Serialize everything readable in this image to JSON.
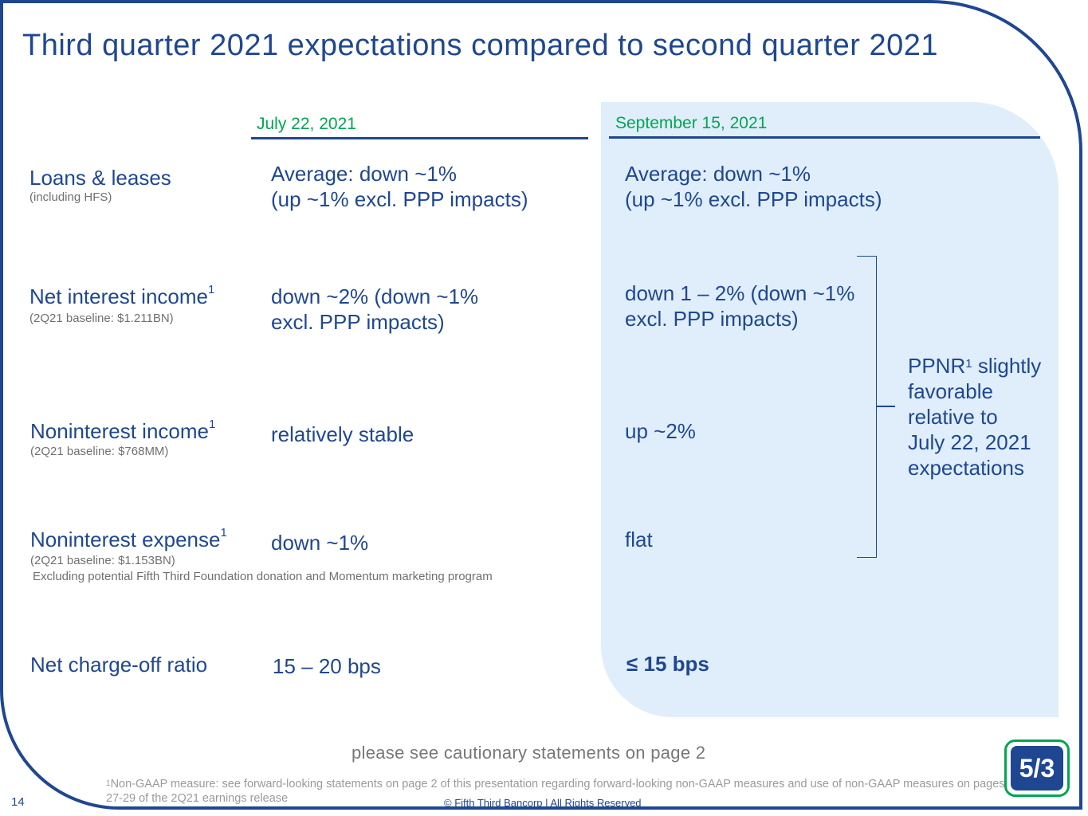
{
  "title": "Third quarter 2021 expectations compared to second quarter 2021",
  "columns": {
    "left_date": "July 22, 2021",
    "right_date": "September 15, 2021"
  },
  "rows": {
    "loans": {
      "label": "Loans & leases",
      "sub": "(including HFS)",
      "july": "Average: down ~1%\n(up ~1% excl. PPP impacts)",
      "sept": "Average: down ~1%\n(up ~1% excl. PPP impacts)"
    },
    "nii": {
      "label": "Net interest income",
      "sup": "1",
      "sub": "(2Q21 baseline: $1.211BN)",
      "july": "down ~2% (down ~1%\nexcl. PPP impacts)",
      "sept": "down 1 – 2% (down ~1%\nexcl. PPP impacts)"
    },
    "nonint_income": {
      "label": "Noninterest income",
      "sup": "1",
      "sub": "(2Q21 baseline: $768MM)",
      "july": "relatively stable",
      "sept": "up ~2%"
    },
    "nonint_expense": {
      "label": "Noninterest expense",
      "sup": "1",
      "sub": "(2Q21 baseline: $1.153BN)",
      "note": "Excluding potential Fifth Third Foundation donation and Momentum marketing program",
      "july": "down ~1%",
      "sept": "flat"
    },
    "nco": {
      "label": "Net charge-off ratio",
      "july": "15 – 20 bps",
      "sept": "≤ 15 bps"
    }
  },
  "ppnr": {
    "prefix": "PPNR",
    "sup": "1",
    "text": " slightly\nfavorable\nrelative to\nJuly 22, 2021\nexpectations"
  },
  "caution": "please see cautionary statements on page 2",
  "footnote": {
    "sup": "1",
    "text": "Non-GAAP measure: see forward-looking statements on page 2 of this presentation regarding forward-looking non-GAAP measures and use of non-GAAP measures on pages 27-29 of the 2Q21 earnings release"
  },
  "copyright": "© Fifth Third Bancorp | All Rights Reserved",
  "page_number": "14",
  "colors": {
    "brand_blue": "#1f4791",
    "accent_green": "#00a651",
    "panel_bg": "#dfeefa"
  },
  "logo": {
    "name": "fifth-third-logo",
    "text": "5/3"
  }
}
